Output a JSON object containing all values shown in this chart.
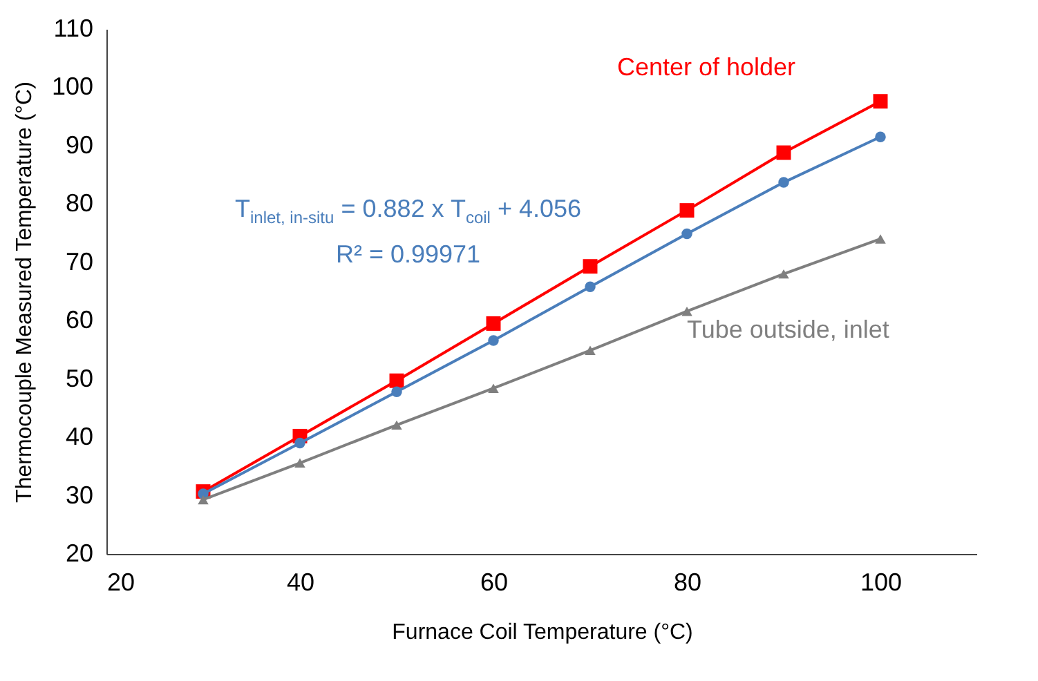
{
  "chart_data": {
    "type": "line",
    "xlabel": "Furnace Coil Temperature (°C)",
    "ylabel": "Thermocouple Measured Temperature (°C)",
    "x": [
      30,
      40,
      50,
      60,
      70,
      80,
      90,
      100
    ],
    "series": [
      {
        "name": "Center of holder",
        "color": "#ff0000",
        "marker": "square",
        "values": [
          30.7,
          40.2,
          49.7,
          59.5,
          69.3,
          78.9,
          88.8,
          97.6
        ]
      },
      {
        "color": "#4a7ebb",
        "marker": "circle",
        "values": [
          30.3,
          39.0,
          47.8,
          56.6,
          65.8,
          74.9,
          83.7,
          91.5
        ]
      },
      {
        "name": "Tube outside, inlet",
        "color": "#7f7f7f",
        "marker": "triangle",
        "values": [
          29.3,
          35.6,
          42.1,
          48.4,
          54.9,
          61.6,
          68.0,
          74.0
        ]
      }
    ],
    "annotations": [
      "T$_{inlet, in-situ}$ = 0.882 x T$_{coil}$ + 4.056",
      "R² = 0.99971"
    ],
    "xlim": [
      20,
      110
    ],
    "xticks": [
      20,
      40,
      60,
      80,
      100
    ],
    "ylim": [
      20,
      110
    ],
    "yticks": [
      20,
      30,
      40,
      50,
      60,
      70,
      80,
      90,
      100,
      110
    ],
    "grid": false
  }
}
